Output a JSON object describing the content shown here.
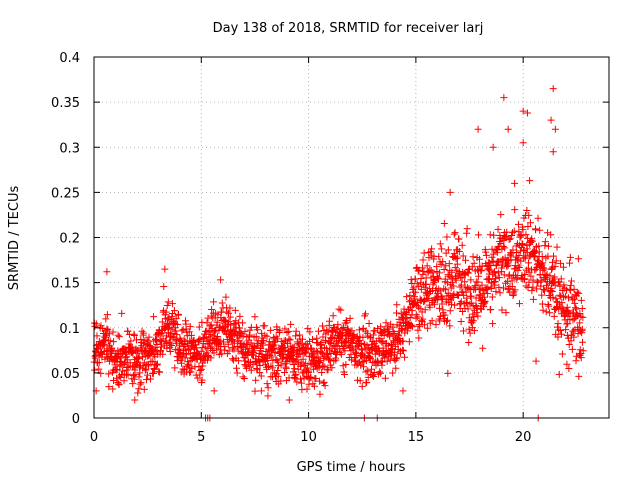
{
  "chart_data": {
    "type": "scatter",
    "title": "Day 138 of 2018, SRMTID for receiver larj",
    "xlabel": "GPS time / hours",
    "ylabel": "SRMTID / TECUs",
    "xlim": [
      0,
      24
    ],
    "ylim": [
      0,
      0.4
    ],
    "xticks": [
      0,
      5,
      10,
      15,
      20
    ],
    "yticks": [
      0,
      0.05,
      0.1,
      0.15,
      0.2,
      0.25,
      0.3,
      0.35,
      0.4
    ],
    "xtick_labels": [
      "0",
      "5",
      "10",
      "15",
      "20"
    ],
    "ytick_labels": [
      "0",
      "0.05",
      "0.1",
      "0.15",
      "0.2",
      "0.25",
      "0.3",
      "0.35",
      "0.4"
    ],
    "grid": true,
    "marker": "+",
    "color": "#ff0000",
    "series": [
      {
        "name": "SRMTID",
        "trend": {
          "x": [
            0,
            0.5,
            1,
            1.5,
            2,
            2.5,
            3,
            3.3,
            3.6,
            4,
            4.5,
            5,
            5.5,
            6,
            6.5,
            7,
            7.5,
            8,
            8.5,
            9,
            9.5,
            10,
            10.5,
            11,
            11.5,
            12,
            12.5,
            13,
            13.5,
            14,
            14.5,
            15,
            15.5,
            16,
            16.5,
            17,
            17.5,
            18,
            18.5,
            19,
            19.5,
            20,
            20.5,
            21,
            21.5,
            22,
            22.5,
            22.8
          ],
          "y": [
            0.08,
            0.085,
            0.065,
            0.068,
            0.066,
            0.07,
            0.075,
            0.1,
            0.095,
            0.075,
            0.07,
            0.068,
            0.09,
            0.1,
            0.085,
            0.07,
            0.075,
            0.065,
            0.07,
            0.072,
            0.068,
            0.06,
            0.065,
            0.08,
            0.09,
            0.085,
            0.075,
            0.07,
            0.08,
            0.085,
            0.1,
            0.14,
            0.13,
            0.145,
            0.14,
            0.165,
            0.14,
            0.135,
            0.15,
            0.18,
            0.165,
            0.185,
            0.175,
            0.16,
            0.13,
            0.11,
            0.1,
            0.095
          ]
        },
        "spread": 0.028,
        "spread_after_15h": 0.045,
        "points_per_hour": 90,
        "outliers": [
          {
            "x": 0.6,
            "y": 0.162
          },
          {
            "x": 3.3,
            "y": 0.165
          },
          {
            "x": 5.9,
            "y": 0.153
          },
          {
            "x": 16.6,
            "y": 0.25
          },
          {
            "x": 17.9,
            "y": 0.32
          },
          {
            "x": 18.6,
            "y": 0.3
          },
          {
            "x": 19.1,
            "y": 0.355
          },
          {
            "x": 19.3,
            "y": 0.32
          },
          {
            "x": 20.0,
            "y": 0.34
          },
          {
            "x": 20.2,
            "y": 0.338
          },
          {
            "x": 20.0,
            "y": 0.305
          },
          {
            "x": 21.3,
            "y": 0.33
          },
          {
            "x": 21.4,
            "y": 0.365
          },
          {
            "x": 21.5,
            "y": 0.32
          },
          {
            "x": 21.4,
            "y": 0.295
          },
          {
            "x": 20.3,
            "y": 0.263
          },
          {
            "x": 19.6,
            "y": 0.26
          },
          {
            "x": 22.2,
            "y": 0.178
          },
          {
            "x": 14.4,
            "y": 0.03
          },
          {
            "x": 1.9,
            "y": 0.02
          },
          {
            "x": 7.8,
            "y": 0.03
          },
          {
            "x": 9.1,
            "y": 0.02
          },
          {
            "x": 5.6,
            "y": 0.03
          },
          {
            "x": 0.1,
            "y": 0.03
          },
          {
            "x": 12.5,
            "y": 0.035
          },
          {
            "x": 20.6,
            "y": 0.063
          }
        ],
        "zero_points": [
          5.2,
          5.3,
          5.4,
          12.6,
          13.2,
          20.7
        ]
      }
    ]
  }
}
